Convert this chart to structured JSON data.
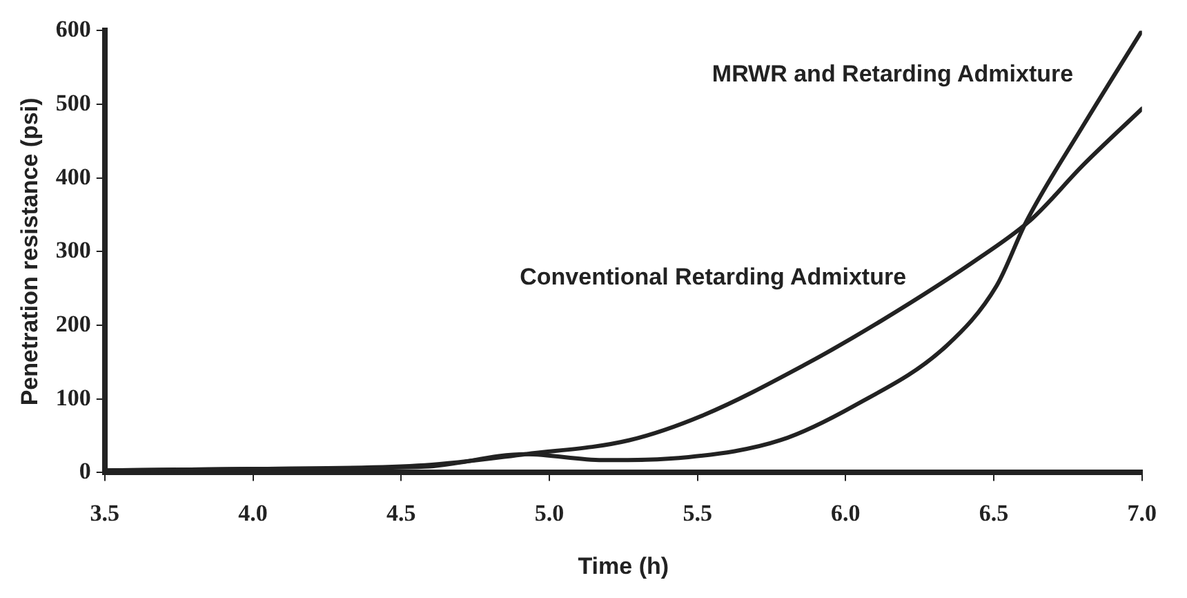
{
  "chart_data": {
    "type": "line",
    "xlabel": "Time (h)",
    "ylabel": "Penetration resistance (psi)",
    "xlim": [
      3.5,
      7.0
    ],
    "xticks": [
      {
        "value": 3.5,
        "label": "3.5"
      },
      {
        "value": 4,
        "label": "4.0"
      },
      {
        "value": 4.5,
        "label": "4.5"
      },
      {
        "value": 5,
        "label": "5.0"
      },
      {
        "value": 5.5,
        "label": "5.5"
      },
      {
        "value": 6,
        "label": "6.0"
      },
      {
        "value": 6.5,
        "label": "6.5"
      },
      {
        "value": 7,
        "label": "7.0"
      }
    ],
    "ylim": [
      0,
      600
    ],
    "yticks": [
      0,
      100,
      200,
      300,
      400,
      500,
      600
    ],
    "grid": false,
    "marker": "none",
    "line_style": "solid",
    "series": [
      {
        "name": "MRWR and Retarding Admixture",
        "color": "#222222",
        "x": [
          3.5,
          4.0,
          4.58,
          4.92,
          5.18,
          5.47,
          5.78,
          6.03,
          6.34,
          6.51,
          6.61,
          6.8,
          7.0
        ],
        "values": [
          3,
          5,
          8,
          25,
          17,
          21,
          44,
          91,
          172,
          254,
          341,
          470,
          600
        ]
      },
      {
        "name": "Conventional Retarding Admixture",
        "color": "#222222",
        "x": [
          3.5,
          4.0,
          4.58,
          4.92,
          5.27,
          5.52,
          5.86,
          6.12,
          6.46,
          6.63,
          6.8,
          7.0
        ],
        "values": [
          3,
          5,
          10,
          25,
          44,
          78,
          146,
          206,
          294,
          345,
          417,
          494
        ]
      }
    ]
  }
}
